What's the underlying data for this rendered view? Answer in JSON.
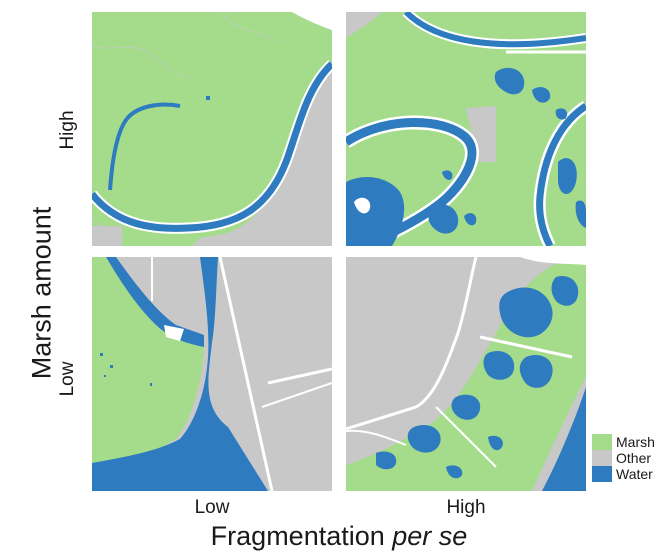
{
  "axis": {
    "y_title": "Marsh amount",
    "x_title_prefix": "Fragmentation ",
    "x_title_italic": "per se",
    "rows": [
      "High",
      "Low"
    ],
    "columns": [
      "Low",
      "High"
    ]
  },
  "legend": [
    {
      "label": "Marsh",
      "color": "#a5dc8c"
    },
    {
      "label": "Other",
      "color": "#c8c8c8"
    },
    {
      "label": "Water",
      "color": "#2e7bbf"
    }
  ],
  "panels": [
    {
      "marsh_amount": "High",
      "fragmentation": "Low"
    },
    {
      "marsh_amount": "High",
      "fragmentation": "High"
    },
    {
      "marsh_amount": "Low",
      "fragmentation": "Low"
    },
    {
      "marsh_amount": "Low",
      "fragmentation": "High"
    }
  ]
}
